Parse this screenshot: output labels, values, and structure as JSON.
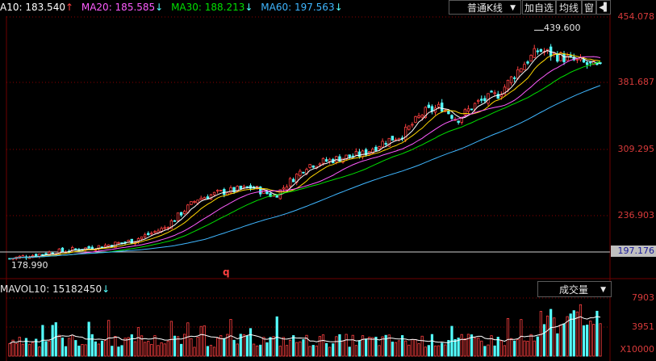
{
  "legend": {
    "ma10": "A10: 183.540",
    "ma10_arrow": "↑",
    "ma20": "MA20: 185.585",
    "ma20_arrow": "↓",
    "ma30": "MA30: 188.213",
    "ma30_arrow": "↓",
    "ma60": "MA60: 197.563",
    "ma60_arrow": "↓"
  },
  "toolbar": {
    "chart_type_label": "普通K线",
    "add_watchlist_label": "加自选",
    "ma_label": "均线",
    "window_label": "窗",
    "arrow_glyph": "◀▌"
  },
  "axis": {
    "price_ticks": [
      "454.078",
      "381.687",
      "309.295",
      "236.903"
    ],
    "current_price": "197.176",
    "volume_ticks": [
      "7903",
      "3951"
    ],
    "volume_unit": "X10000"
  },
  "annotations": {
    "high": "439.600",
    "low": "178.990",
    "marker": "q"
  },
  "volume": {
    "mavol_label": "MAVOL10: 15182450",
    "mavol_arrow": "↓",
    "indicator_label": "成交量"
  },
  "colors": {
    "up": "#ff4040",
    "down": "#54ffff",
    "ma10": "#ffffff",
    "ma20": "#ffd800",
    "ma30": "#ff5cff",
    "ma40": "#00e000",
    "ma60": "#3fb6ff",
    "grid": "#8b0000"
  },
  "chart_data": {
    "type": "candlestick",
    "y_ticks": [
      454.078,
      381.687,
      309.295,
      236.903
    ],
    "current_price": 197.176,
    "high": 439.6,
    "low": 178.99,
    "volume_ticks": [
      7903,
      3951
    ],
    "volume_unit": "X10000",
    "grid": true
  }
}
